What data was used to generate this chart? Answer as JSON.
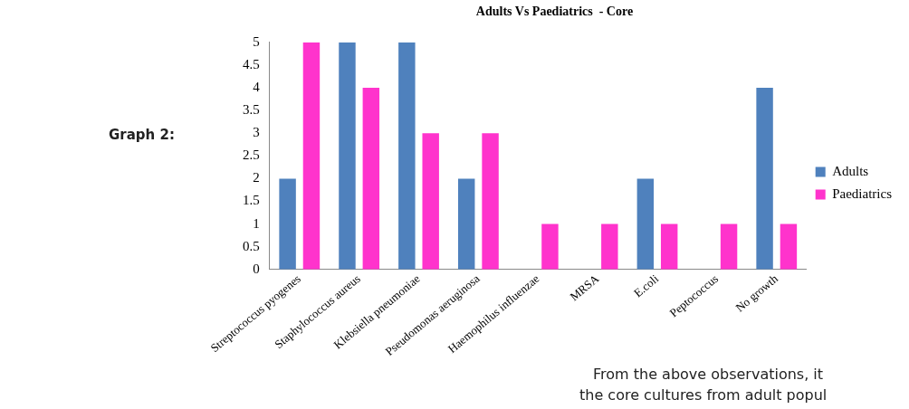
{
  "chart_data": {
    "type": "bar",
    "title": "Adults Vs Paediatrics  - Core",
    "categories": [
      "Streptococcus pyogenes",
      "Staphylococcus aureus",
      "Klebsiella pneumoniae",
      "Pseudomonas aeruginosa",
      "Haemophilus influenzae",
      "MRSA",
      "E.coli",
      "Peptococcus",
      "No growth"
    ],
    "series": [
      {
        "name": "Adults",
        "color": "#4f81bd",
        "values": [
          2,
          5,
          5,
          2,
          0,
          0,
          2,
          0,
          4
        ]
      },
      {
        "name": "Paediatrics",
        "color": "#ff33cc",
        "values": [
          5,
          4,
          3,
          3,
          1,
          1,
          1,
          1,
          1
        ]
      }
    ],
    "ylim": [
      0,
      5
    ],
    "yticks": [
      0,
      0.5,
      1,
      1.5,
      2,
      2.5,
      3,
      3.5,
      4,
      4.5,
      5
    ],
    "grid": false,
    "legend": "right",
    "annotations": [
      "Graph 2:",
      "From the above observations, it",
      "the core cultures from adult popul"
    ]
  }
}
